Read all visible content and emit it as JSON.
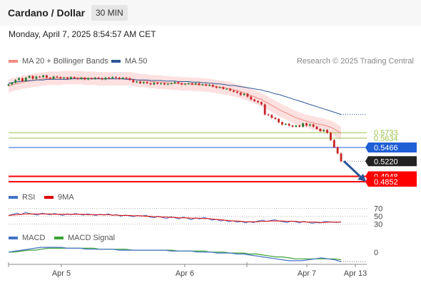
{
  "header": {
    "title": "Cardano / Dollar",
    "timeframe": "30 MIN"
  },
  "datetime": "Monday, April 7, 2025 8:54:57 AM CET",
  "legend": {
    "ma20": {
      "label": "MA 20 + Bollinger Bands",
      "color": "#f28b82"
    },
    "ma50": {
      "label": "MA 50",
      "color": "#2b5797"
    }
  },
  "credit": "Research © 2025 Trading Central",
  "colors": {
    "up": "#2e7d32",
    "down": "#c62828",
    "band": "#fde0e0",
    "support": "#ff0000",
    "pivot": "#1f5fd6",
    "resistance": "#9bc34a",
    "arrow": "#2b5797"
  },
  "chart_data": [
    {
      "type": "candlestick",
      "ylim": [
        0.475,
        0.69
      ],
      "x": [
        "Apr 5",
        "Apr 6",
        "Apr 7",
        "Apr 13"
      ],
      "close_series": [
        0.66,
        0.663,
        0.668,
        0.671,
        0.666,
        0.672,
        0.675,
        0.67,
        0.674,
        0.673,
        0.676,
        0.672,
        0.67,
        0.674,
        0.673,
        0.671,
        0.672,
        0.67,
        0.673,
        0.671,
        0.67,
        0.672,
        0.669,
        0.671,
        0.67,
        0.672,
        0.671,
        0.669,
        0.672,
        0.671,
        0.673,
        0.672,
        0.67,
        0.672,
        0.671,
        0.668,
        0.664,
        0.665,
        0.662,
        0.664,
        0.662,
        0.66,
        0.663,
        0.661,
        0.662,
        0.66,
        0.661,
        0.662,
        0.664,
        0.662,
        0.66,
        0.661,
        0.662,
        0.66,
        0.662,
        0.659,
        0.66,
        0.658,
        0.659,
        0.656,
        0.654,
        0.655,
        0.652,
        0.652,
        0.649,
        0.647,
        0.645,
        0.641,
        0.643,
        0.638,
        0.633,
        0.63,
        0.628,
        0.624,
        0.606,
        0.605,
        0.6,
        0.598,
        0.592,
        0.588,
        0.589,
        0.586,
        0.584,
        0.586,
        0.584,
        0.59,
        0.586,
        0.588,
        0.584,
        0.58,
        0.576,
        0.578,
        0.573,
        0.56,
        0.547,
        0.536,
        0.522
      ],
      "ma20": [
        0.657,
        0.659,
        0.661,
        0.662,
        0.664,
        0.665,
        0.666,
        0.667,
        0.668,
        0.669,
        0.67,
        0.67,
        0.671,
        0.671,
        0.671,
        0.671,
        0.672,
        0.672,
        0.672,
        0.672,
        0.672,
        0.672,
        0.671,
        0.671,
        0.671,
        0.671,
        0.67,
        0.67,
        0.67,
        0.67,
        0.67,
        0.67,
        0.67,
        0.67,
        0.67,
        0.67,
        0.669,
        0.668,
        0.667,
        0.667,
        0.666,
        0.665,
        0.665,
        0.664,
        0.664,
        0.663,
        0.663,
        0.662,
        0.662,
        0.662,
        0.661,
        0.661,
        0.661,
        0.66,
        0.66,
        0.66,
        0.659,
        0.659,
        0.658,
        0.657,
        0.656,
        0.655,
        0.654,
        0.653,
        0.652,
        0.65,
        0.649,
        0.647,
        0.645,
        0.643,
        0.64,
        0.638,
        0.635,
        0.633,
        0.629,
        0.626,
        0.622,
        0.619,
        0.615,
        0.612,
        0.609,
        0.606,
        0.603,
        0.6,
        0.598,
        0.596,
        0.594,
        0.592,
        0.591,
        0.589,
        0.588,
        0.587,
        0.585,
        0.583,
        0.58,
        0.576,
        0.572
      ],
      "ma50": [
        0.662,
        0.663,
        0.664,
        0.665,
        0.666,
        0.666,
        0.667,
        0.667,
        0.668,
        0.668,
        0.668,
        0.669,
        0.669,
        0.669,
        0.669,
        0.669,
        0.669,
        0.669,
        0.67,
        0.67,
        0.67,
        0.67,
        0.67,
        0.67,
        0.67,
        0.67,
        0.67,
        0.67,
        0.67,
        0.67,
        0.67,
        0.67,
        0.67,
        0.67,
        0.669,
        0.669,
        0.669,
        0.668,
        0.668,
        0.668,
        0.668,
        0.667,
        0.667,
        0.667,
        0.667,
        0.666,
        0.666,
        0.666,
        0.666,
        0.665,
        0.665,
        0.665,
        0.665,
        0.664,
        0.664,
        0.664,
        0.663,
        0.663,
        0.662,
        0.662,
        0.661,
        0.661,
        0.66,
        0.659,
        0.658,
        0.658,
        0.657,
        0.656,
        0.655,
        0.654,
        0.653,
        0.652,
        0.651,
        0.65,
        0.648,
        0.647,
        0.645,
        0.643,
        0.642,
        0.64,
        0.638,
        0.636,
        0.634,
        0.632,
        0.63,
        0.628,
        0.626,
        0.624,
        0.622,
        0.62,
        0.618,
        0.616,
        0.614,
        0.612,
        0.61,
        0.608,
        0.606
      ],
      "bb_width": 0.012,
      "levels": [
        {
          "kind": "resistance",
          "value": 0.5733,
          "label": "0.5733"
        },
        {
          "kind": "resistance",
          "value": 0.5634,
          "label": "0.5634"
        },
        {
          "kind": "pivot",
          "value": 0.5466,
          "label": "0.5466"
        },
        {
          "kind": "last",
          "value": 0.522,
          "label": "0.5220"
        },
        {
          "kind": "support",
          "value": 0.4948,
          "label": "0.4948"
        },
        {
          "kind": "support",
          "value": 0.4852,
          "label": "0.4852"
        }
      ],
      "arrow": {
        "from": 0.522,
        "to": 0.488
      }
    },
    {
      "type": "line",
      "indicator": "RSI",
      "legend": [
        "RSI",
        "9MA"
      ],
      "levels": [
        70,
        50,
        30
      ],
      "level_labels": [
        "70",
        "50",
        "30"
      ],
      "ylim": [
        20,
        80
      ],
      "rsi": [
        52,
        55,
        58,
        54,
        60,
        57,
        55,
        53,
        58,
        56,
        54,
        57,
        55,
        52,
        56,
        54,
        57,
        55,
        53,
        56,
        54,
        52,
        55,
        53,
        56,
        52,
        54,
        50,
        53,
        51,
        49,
        52,
        50,
        53,
        48,
        46,
        50,
        47,
        44,
        49,
        46,
        43,
        48,
        45,
        41,
        46,
        43,
        47,
        44,
        40,
        42,
        38,
        40,
        36,
        39,
        35,
        37,
        33,
        36,
        34,
        38,
        40,
        37,
        39,
        41,
        38,
        36,
        34,
        38,
        36,
        33,
        37,
        35,
        32,
        34,
        33,
        37,
        36,
        35,
        34,
        36
      ],
      "ma9": [
        52,
        53,
        54,
        55,
        56,
        56,
        56,
        56,
        56,
        56,
        56,
        55,
        55,
        55,
        55,
        55,
        55,
        55,
        55,
        54,
        54,
        54,
        54,
        54,
        54,
        53,
        53,
        52,
        52,
        52,
        51,
        51,
        51,
        50,
        50,
        49,
        49,
        48,
        48,
        47,
        47,
        46,
        46,
        46,
        45,
        45,
        45,
        44,
        44,
        43,
        42,
        41,
        40,
        39,
        38,
        38,
        37,
        36,
        36,
        36,
        36,
        37,
        37,
        38,
        38,
        38,
        38,
        37,
        37,
        37,
        36,
        36,
        35,
        35,
        35,
        34,
        34,
        35,
        35,
        35,
        35
      ]
    },
    {
      "type": "line",
      "indicator": "MACD",
      "legend": [
        "MACD",
        "MACD Signal"
      ],
      "zero_label": "0",
      "ylim": [
        -0.012,
        0.008
      ],
      "macd": [
        0.0,
        0.001,
        0.002,
        0.003,
        0.004,
        0.005,
        0.005,
        0.005,
        0.005,
        0.004,
        0.004,
        0.004,
        0.003,
        0.003,
        0.003,
        0.003,
        0.003,
        0.002,
        0.002,
        0.002,
        0.002,
        0.002,
        0.002,
        0.002,
        0.002,
        0.001,
        0.001,
        0.001,
        0.001,
        0.0,
        0.0,
        0.0,
        -0.001,
        -0.001,
        -0.001,
        -0.002,
        -0.002,
        -0.003,
        -0.004,
        -0.005,
        -0.006,
        -0.007,
        -0.008,
        -0.009,
        -0.009,
        -0.009,
        -0.008,
        -0.007,
        -0.006,
        -0.007,
        -0.008,
        -0.01
      ],
      "signal": [
        0.0,
        0.0,
        0.001,
        0.002,
        0.002,
        0.003,
        0.004,
        0.004,
        0.004,
        0.004,
        0.004,
        0.004,
        0.004,
        0.004,
        0.003,
        0.003,
        0.003,
        0.003,
        0.003,
        0.002,
        0.002,
        0.002,
        0.002,
        0.002,
        0.002,
        0.002,
        0.001,
        0.001,
        0.001,
        0.001,
        0.001,
        0.0,
        0.0,
        0.0,
        -0.001,
        -0.001,
        -0.001,
        -0.002,
        -0.002,
        -0.003,
        -0.004,
        -0.005,
        -0.005,
        -0.006,
        -0.007,
        -0.007,
        -0.007,
        -0.007,
        -0.007,
        -0.007,
        -0.007,
        -0.008
      ]
    }
  ]
}
